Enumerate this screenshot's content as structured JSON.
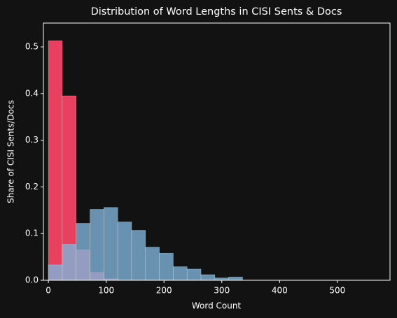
{
  "chart_data": {
    "type": "histogram",
    "title": "Distribution of Word Lengths in CISI Sents & Docs",
    "xlabel": "Word Count",
    "ylabel": "Share of CISI Sents/Docs",
    "bins": [
      0,
      24,
      48,
      72,
      96,
      120,
      144,
      168,
      192,
      216,
      240,
      264,
      288,
      312,
      336,
      360
    ],
    "series": [
      {
        "color": "#e8415f",
        "opacity": 1,
        "values": [
          0.513,
          0.395,
          0.065,
          0.017,
          0.003,
          0,
          0,
          0,
          0,
          0,
          0,
          0,
          0,
          0,
          0
        ]
      },
      {
        "color": "#7fb3da",
        "opacity": 0.8,
        "values": [
          0.033,
          0.077,
          0.122,
          0.152,
          0.156,
          0.125,
          0.107,
          0.071,
          0.058,
          0.029,
          0.024,
          0.012,
          0.005,
          0.007,
          0
        ]
      }
    ],
    "xlim": [
      -8.6,
      591
    ],
    "ylim": [
      0,
      0.551
    ],
    "xticks": [
      0,
      100,
      200,
      300,
      400,
      500
    ],
    "yticks": [
      {
        "value": 0,
        "label": "0.0"
      },
      0.1,
      0.2,
      0.3,
      0.4,
      0.5
    ],
    "grid": false
  }
}
